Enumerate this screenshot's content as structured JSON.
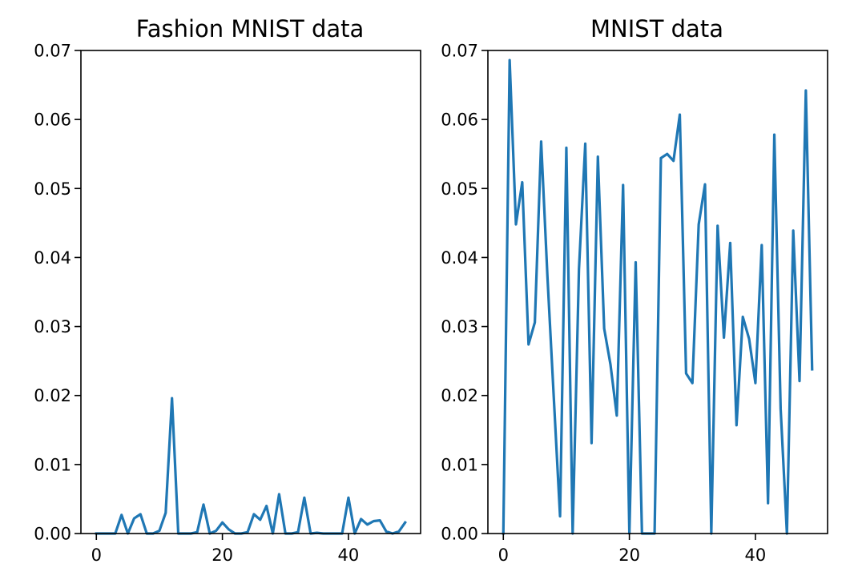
{
  "chart_data": [
    {
      "type": "line",
      "title": "Fashion MNIST data",
      "xlabel": "",
      "ylabel": "",
      "xlim": [
        -2.45,
        51.45
      ],
      "ylim": [
        0.0,
        0.07
      ],
      "xticks": [
        0,
        20,
        40
      ],
      "xtick_labels": [
        "0",
        "20",
        "40"
      ],
      "yticks": [
        0.0,
        0.01,
        0.02,
        0.03,
        0.04,
        0.05,
        0.06,
        0.07
      ],
      "ytick_labels": [
        "0.00",
        "0.01",
        "0.02",
        "0.03",
        "0.04",
        "0.05",
        "0.06",
        "0.07"
      ],
      "grid": false,
      "color": "#1f77b4",
      "x": [
        0,
        1,
        2,
        3,
        4,
        5,
        6,
        7,
        8,
        9,
        10,
        11,
        12,
        13,
        14,
        15,
        16,
        17,
        18,
        19,
        20,
        21,
        22,
        23,
        24,
        25,
        26,
        27,
        28,
        29,
        30,
        31,
        32,
        33,
        34,
        35,
        36,
        37,
        38,
        39,
        40,
        41,
        42,
        43,
        44,
        45,
        46,
        47,
        48,
        49
      ],
      "y": [
        0.0,
        0.0,
        0.0,
        0.0,
        0.0027,
        0.0,
        0.0022,
        0.0028,
        0.0,
        0.0,
        0.0004,
        0.003,
        0.0196,
        0.0,
        0.0,
        0.0,
        0.0002,
        0.0042,
        0.0,
        0.0004,
        0.0016,
        0.0006,
        0.0,
        0.0,
        0.0002,
        0.0028,
        0.002,
        0.004,
        0.0,
        0.0057,
        0.0,
        0.0,
        0.0002,
        0.0052,
        0.0,
        0.0001,
        0.0,
        0.0,
        0.0,
        0.0,
        0.0052,
        0.0,
        0.0021,
        0.0013,
        0.0018,
        0.0019,
        0.0003,
        0.0,
        0.0003,
        0.0016
      ]
    },
    {
      "type": "line",
      "title": "MNIST data",
      "xlabel": "",
      "ylabel": "",
      "xlim": [
        -2.45,
        51.45
      ],
      "ylim": [
        0.0,
        0.07
      ],
      "xticks": [
        0,
        20,
        40
      ],
      "xtick_labels": [
        "0",
        "20",
        "40"
      ],
      "yticks": [
        0.0,
        0.01,
        0.02,
        0.03,
        0.04,
        0.05,
        0.06,
        0.07
      ],
      "ytick_labels": [
        "0.00",
        "0.01",
        "0.02",
        "0.03",
        "0.04",
        "0.05",
        "0.06",
        "0.07"
      ],
      "grid": false,
      "color": "#1f77b4",
      "x": [
        0,
        1,
        2,
        3,
        4,
        5,
        6,
        7,
        8,
        9,
        10,
        11,
        12,
        13,
        14,
        15,
        16,
        17,
        18,
        19,
        20,
        21,
        22,
        23,
        24,
        25,
        26,
        27,
        28,
        29,
        30,
        31,
        32,
        33,
        34,
        35,
        36,
        37,
        38,
        39,
        40,
        41,
        42,
        43,
        44,
        45,
        46,
        47,
        48,
        49
      ],
      "y": [
        0.0,
        0.0686,
        0.0448,
        0.0509,
        0.0274,
        0.0306,
        0.0568,
        0.0372,
        0.0198,
        0.0025,
        0.0559,
        0.0,
        0.0383,
        0.0565,
        0.0131,
        0.0546,
        0.0297,
        0.0245,
        0.0171,
        0.0505,
        0.0,
        0.0393,
        0.0,
        0.0,
        0.0,
        0.0544,
        0.055,
        0.054,
        0.0607,
        0.0232,
        0.0218,
        0.0448,
        0.0506,
        0.0,
        0.0446,
        0.0284,
        0.0421,
        0.0157,
        0.0314,
        0.0282,
        0.0218,
        0.0418,
        0.0044,
        0.0578,
        0.0181,
        0.0,
        0.0439,
        0.0221,
        0.0642,
        0.0238
      ]
    }
  ]
}
